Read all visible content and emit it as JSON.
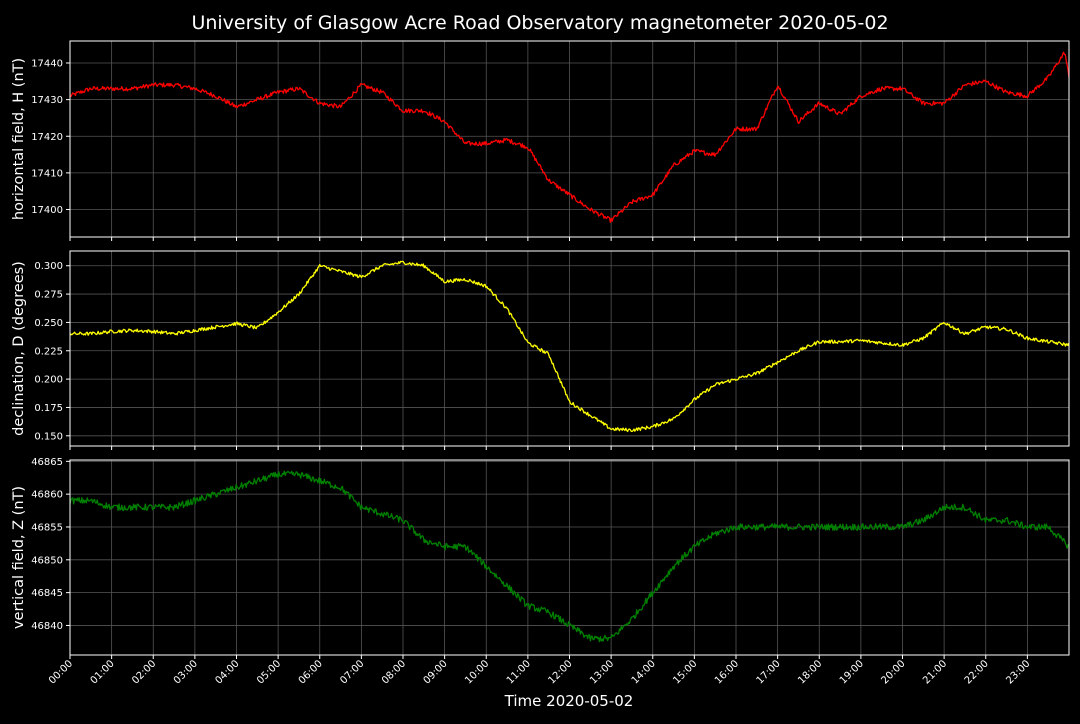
{
  "title": "University of Glasgow Acre Road Observatory magnetometer 2020-05-02",
  "xlabel": "Time 2020-05-02",
  "x_ticks": [
    "00:00",
    "01:00",
    "02:00",
    "03:00",
    "04:00",
    "05:00",
    "06:00",
    "07:00",
    "08:00",
    "09:00",
    "10:00",
    "11:00",
    "12:00",
    "13:00",
    "14:00",
    "15:00",
    "16:00",
    "17:00",
    "18:00",
    "19:00",
    "20:00",
    "21:00",
    "22:00",
    "23:00"
  ],
  "colors": {
    "background": "#000000",
    "grid": "#555555",
    "text": "#ffffff",
    "H": "#ff0000",
    "D": "#ffff00",
    "Z": "#008000"
  },
  "chart_data": [
    {
      "type": "line",
      "ylabel": "horizontal field, H (nT)",
      "xlim": [
        0,
        24
      ],
      "ylim": [
        17392.5,
        17446
      ],
      "yticks": [
        17400,
        17410,
        17420,
        17430,
        17440
      ],
      "ytick_labels": [
        "17400",
        "17410",
        "17420",
        "17430",
        "17440"
      ],
      "decimals": 0,
      "noise": 0.6,
      "series": [
        {
          "color": "#ff0000",
          "x": [
            0,
            0.5,
            1,
            1.5,
            2,
            2.5,
            3,
            3.5,
            4,
            4.5,
            5,
            5.5,
            6,
            6.5,
            7,
            7.5,
            8,
            8.5,
            9,
            9.5,
            10,
            10.5,
            11,
            11.5,
            12,
            12.5,
            13,
            13.5,
            14,
            14.5,
            15,
            15.5,
            16,
            16.5,
            17,
            17.5,
            18,
            18.5,
            19,
            19.5,
            20,
            20.5,
            21,
            21.5,
            22,
            22.5,
            23,
            23.5,
            23.9,
            24
          ],
          "y": [
            17431,
            17433,
            17433,
            17433,
            17434,
            17434,
            17433,
            17431,
            17428,
            17430,
            17432,
            17433,
            17429,
            17428,
            17434,
            17432,
            17427,
            17427,
            17424,
            17418,
            17418,
            17419,
            17417,
            17408,
            17404,
            17400,
            17397,
            17402,
            17404,
            17412,
            17416,
            17415,
            17422,
            17422,
            17434,
            17424,
            17429,
            17426,
            17431,
            17433,
            17433,
            17429,
            17429,
            17434,
            17435,
            17432,
            17431,
            17436,
            17443,
            17436
          ]
        }
      ]
    },
    {
      "type": "line",
      "ylabel": "declination, D (degrees)",
      "xlim": [
        0,
        24
      ],
      "ylim": [
        0.141,
        0.313
      ],
      "yticks": [
        0.15,
        0.175,
        0.2,
        0.225,
        0.25,
        0.275,
        0.3
      ],
      "ytick_labels": [
        "0.150",
        "0.175",
        "0.200",
        "0.225",
        "0.250",
        "0.275",
        "0.300"
      ],
      "decimals": 3,
      "noise": 0.0015,
      "series": [
        {
          "color": "#ffff00",
          "x": [
            0,
            0.5,
            1,
            1.5,
            2,
            2.5,
            3,
            3.5,
            4,
            4.5,
            5,
            5.5,
            6,
            6.5,
            7,
            7.5,
            8,
            8.5,
            9,
            9.5,
            10,
            10.5,
            11,
            11.5,
            12,
            12.5,
            13,
            13.5,
            14,
            14.5,
            15,
            15.5,
            16,
            16.5,
            17,
            17.5,
            18,
            18.5,
            19,
            19.5,
            20,
            20.5,
            21,
            21.5,
            22,
            22.5,
            23,
            23.5,
            24
          ],
          "y": [
            0.24,
            0.24,
            0.242,
            0.243,
            0.242,
            0.24,
            0.243,
            0.246,
            0.249,
            0.245,
            0.259,
            0.275,
            0.3,
            0.295,
            0.29,
            0.3,
            0.303,
            0.3,
            0.286,
            0.288,
            0.282,
            0.262,
            0.232,
            0.222,
            0.18,
            0.168,
            0.156,
            0.155,
            0.158,
            0.165,
            0.182,
            0.195,
            0.2,
            0.205,
            0.215,
            0.225,
            0.233,
            0.233,
            0.234,
            0.232,
            0.23,
            0.236,
            0.25,
            0.24,
            0.246,
            0.244,
            0.236,
            0.233,
            0.23
          ]
        }
      ]
    },
    {
      "type": "line",
      "ylabel": "vertical field, Z (nT)",
      "xlim": [
        0,
        24
      ],
      "ylim": [
        46835.5,
        46865.2
      ],
      "yticks": [
        46840,
        46845,
        46850,
        46855,
        46860,
        46865
      ],
      "ytick_labels": [
        "46840",
        "46845",
        "46850",
        "46855",
        "46860",
        "46865"
      ],
      "decimals": 0,
      "noise": 0.5,
      "series": [
        {
          "color": "#008000",
          "x": [
            0,
            0.5,
            1,
            1.5,
            2,
            2.5,
            3,
            3.5,
            4,
            4.5,
            5,
            5.5,
            6,
            6.5,
            7,
            7.5,
            8,
            8.5,
            9,
            9.5,
            10,
            10.5,
            11,
            11.5,
            12,
            12.5,
            13,
            13.5,
            14,
            14.5,
            15,
            15.5,
            16,
            16.5,
            17,
            17.5,
            18,
            18.5,
            19,
            19.5,
            20,
            20.5,
            21,
            21.5,
            22,
            22.5,
            23,
            23.5,
            24
          ],
          "y": [
            46859,
            46859,
            46858,
            46858,
            46858,
            46858,
            46859,
            46860,
            46861,
            46862,
            46863,
            46863,
            46862,
            46861,
            46858,
            46857,
            46856,
            46853,
            46852,
            46852,
            46849,
            46846,
            46843,
            46842,
            46840,
            46838,
            46838,
            46841,
            46845,
            46849,
            46852,
            46854,
            46855,
            46855,
            46855,
            46855,
            46855,
            46855,
            46855,
            46855,
            46855,
            46856,
            46858,
            46858,
            46856,
            46856,
            46855,
            46855,
            46852
          ]
        }
      ]
    }
  ]
}
